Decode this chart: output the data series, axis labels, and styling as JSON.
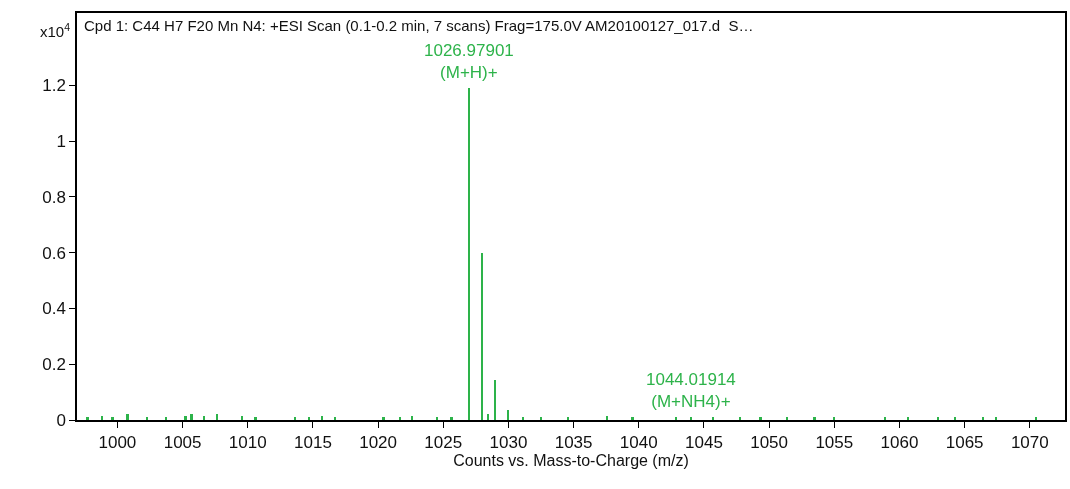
{
  "chart_data": {
    "type": "bar",
    "title": "Cpd 1: C44 H7 F20 Mn N4: +ESI Scan (0.1-0.2 min, 7 scans) Frag=175.0V AM20100127_017.d  S…",
    "xlabel": "Counts vs. Mass-to-Charge (m/z)",
    "ylabel": "x10$^{4}$",
    "x": [
      997.73,
      998.83,
      999.64,
      1000.79,
      1002.32,
      1003.72,
      1005.25,
      1005.71,
      1006.66,
      1007.67,
      1009.59,
      1010.61,
      1013.67,
      1014.69,
      1015.71,
      1016.73,
      1020.43,
      1021.71,
      1022.6,
      1024.51,
      1025.65,
      1026.97901,
      1027.98,
      1028.46,
      1028.98,
      1030.0,
      1031.14,
      1032.54,
      1034.6,
      1037.57,
      1039.53,
      1042.88,
      1044.01914,
      1045.73,
      1047.8,
      1049.35,
      1051.4,
      1053.5,
      1055.0,
      1058.9,
      1060.7,
      1063.0,
      1064.3,
      1066.4,
      1067.4,
      1070.5
    ],
    "values": [
      0.01,
      0.015,
      0.01,
      0.02,
      0.01,
      0.01,
      0.015,
      0.02,
      0.015,
      0.02,
      0.015,
      0.01,
      0.01,
      0.01,
      0.015,
      0.01,
      0.01,
      0.01,
      0.015,
      0.01,
      0.01,
      1.19,
      0.6,
      0.02,
      0.145,
      0.035,
      0.01,
      0.01,
      0.01,
      0.015,
      0.01,
      0.01,
      0.01,
      0.01,
      0.01,
      0.01,
      0.01,
      0.01,
      0.01,
      0.01,
      0.01,
      0.01,
      0.01,
      0.01,
      0.01,
      0.01
    ],
    "color": "#2db34a",
    "xlim": [
      996.9,
      1072.7
    ],
    "ylim": [
      0,
      1.46
    ],
    "xticks": [
      1000,
      1005,
      1010,
      1015,
      1020,
      1025,
      1030,
      1035,
      1040,
      1045,
      1050,
      1055,
      1060,
      1065,
      1070
    ],
    "yticks": [
      0,
      0.2,
      0.4,
      0.6,
      0.8,
      1,
      1.2
    ],
    "annotations": [
      {
        "text": "1026.97901\n(M+H)+",
        "x": 1026.97901,
        "y": 1.19
      },
      {
        "text": "1044.01914\n(M+NH4)+",
        "x": 1044.01914,
        "y": 0.01
      }
    ]
  }
}
